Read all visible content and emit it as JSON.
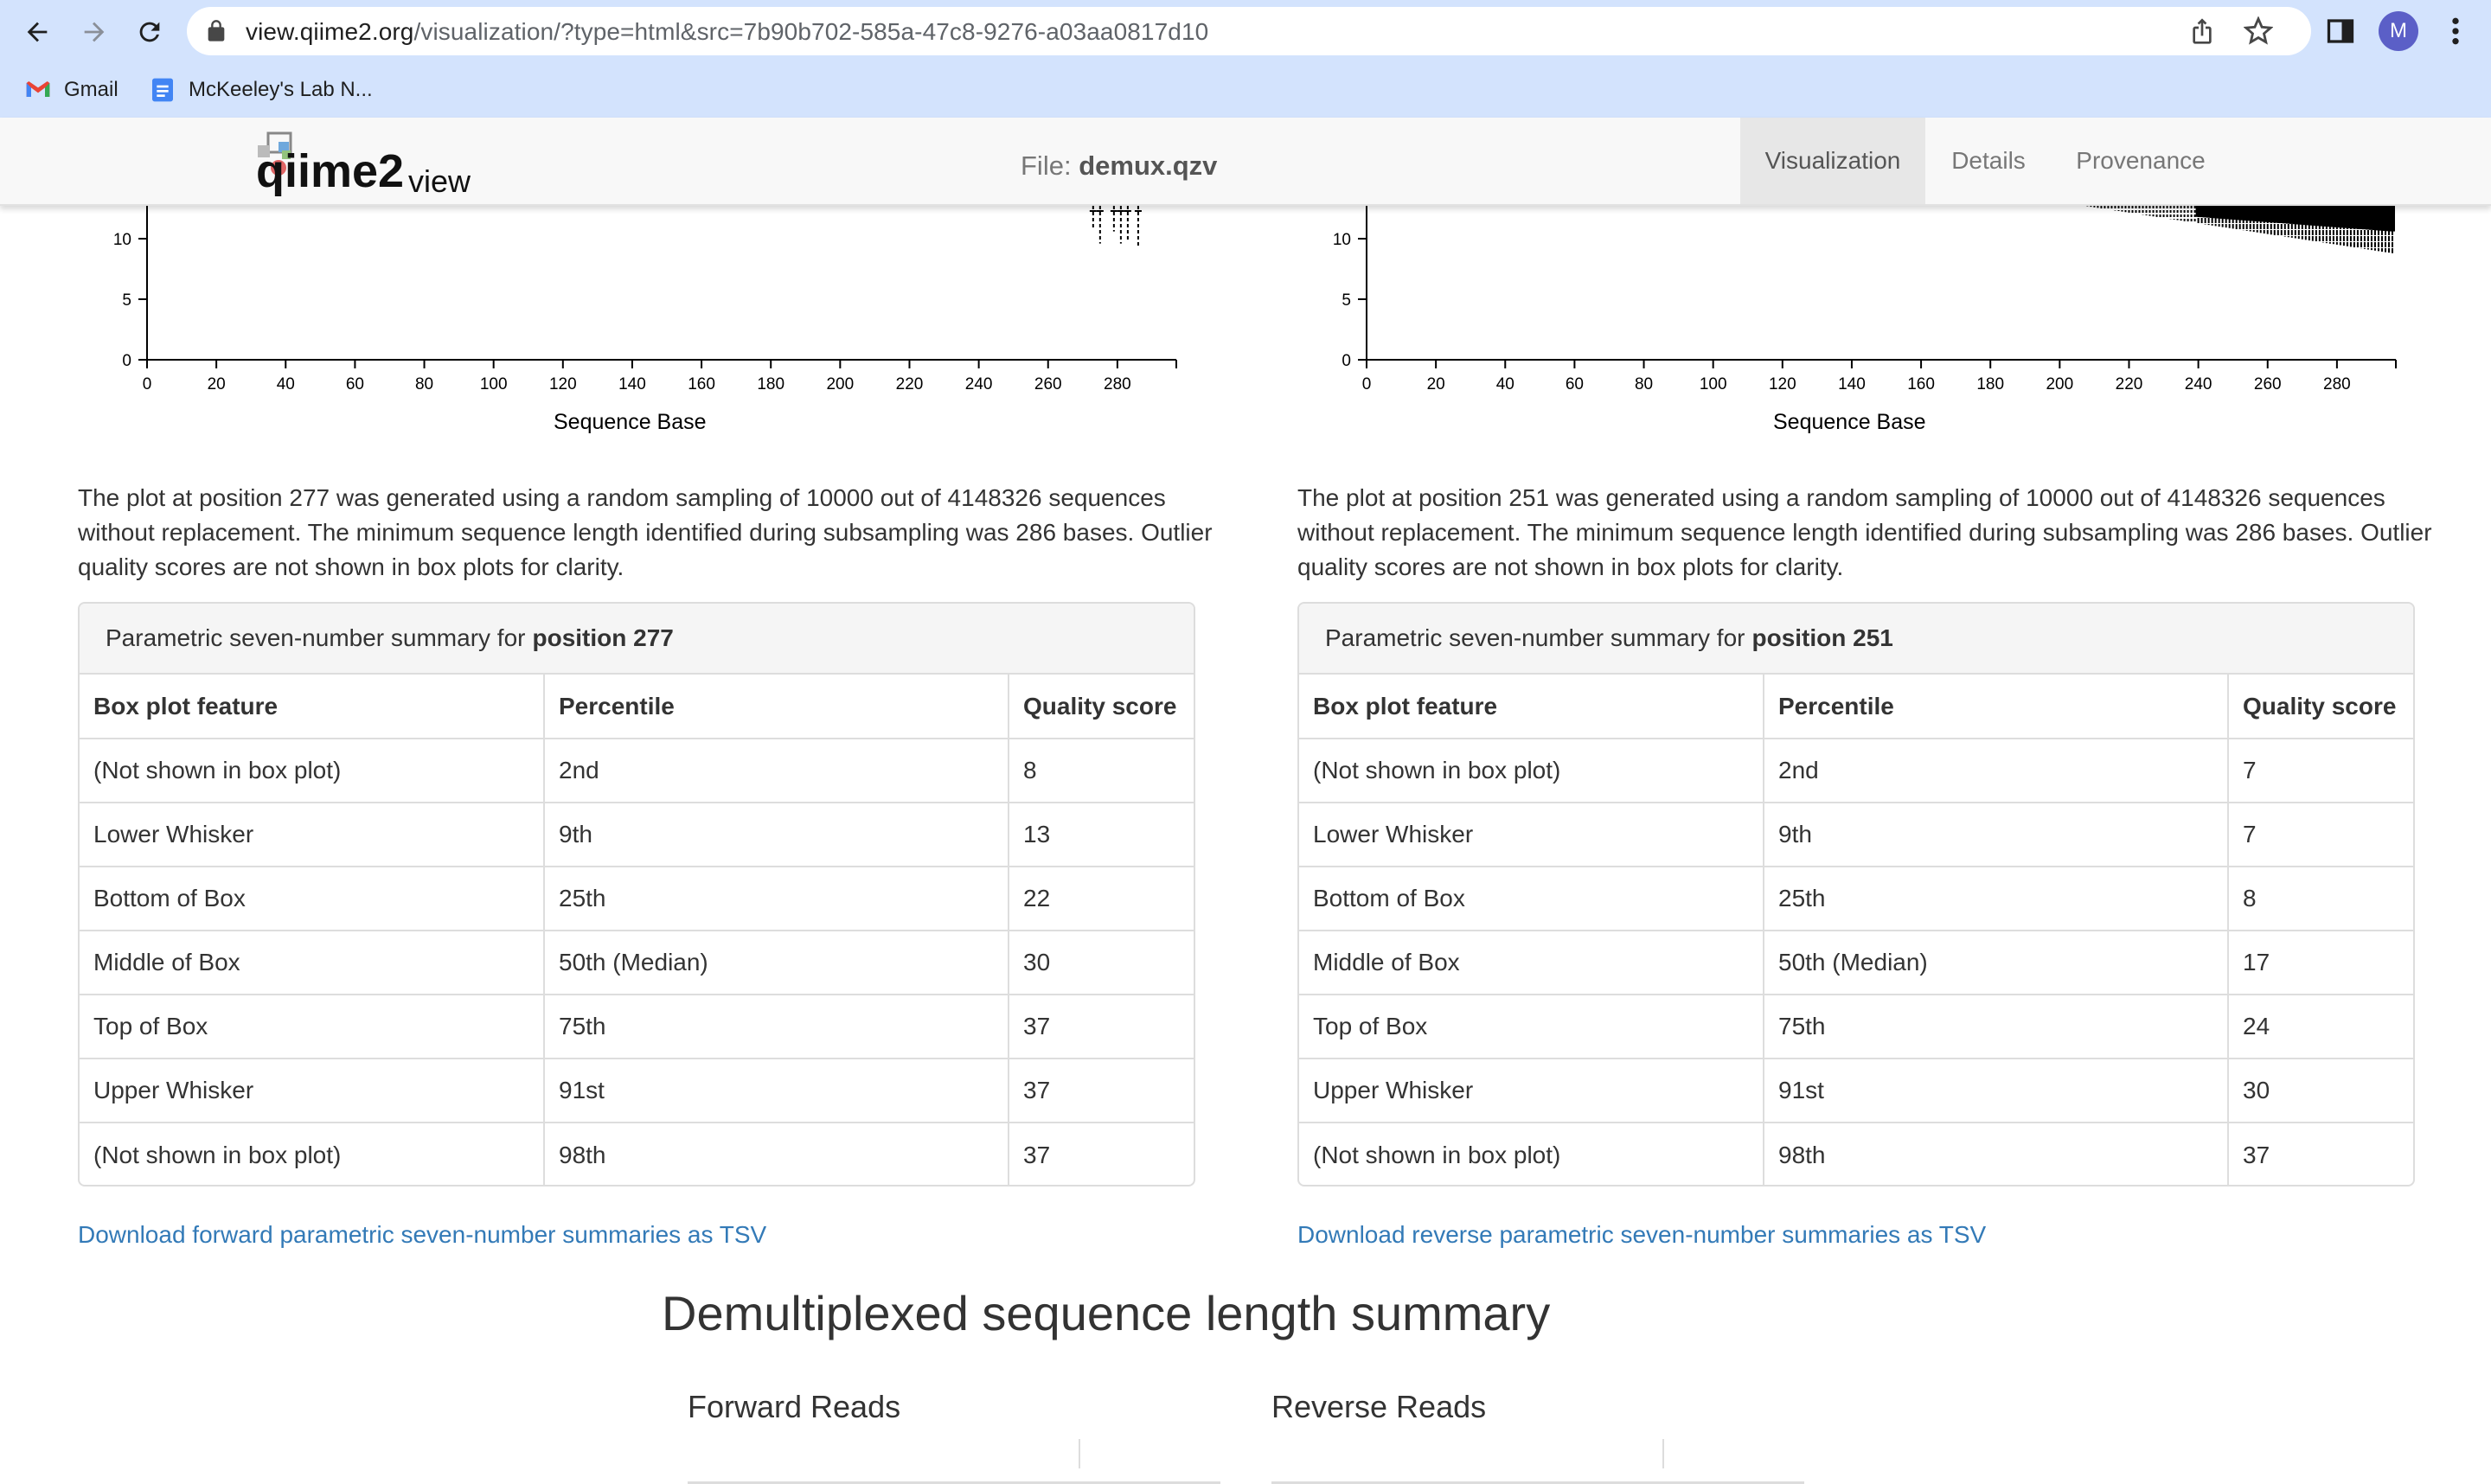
{
  "browser": {
    "url_host": "view.qiime2.org",
    "url_path": "/visualization/?type=html&src=7b90b702-585a-47c8-9276-a03aa0817d10",
    "bookmarks": [
      "Gmail",
      "McKeeley's Lab N..."
    ],
    "avatar_letter": "M"
  },
  "header": {
    "file_label": "File:",
    "file_name": "demux.qzv",
    "tabs": [
      "Visualization",
      "Details",
      "Provenance"
    ],
    "active_tab": "Visualization",
    "logo_text_main": "qiime2",
    "logo_text_sub": "view"
  },
  "forward": {
    "paragraph": "The plot at position 277 was generated using a random sampling of 10000 out of 4148326 sequences without replacement. The minimum sequence length identified during subsampling was 286 bases. Outlier quality scores are not shown in box plots for clarity.",
    "summary_prefix": "Parametric seven-number summary for",
    "summary_position": "position 277",
    "download_link": "Download forward parametric seven-number summaries as TSV"
  },
  "reverse": {
    "paragraph": "The plot at position 251 was generated using a random sampling of 10000 out of 4148326 sequences without replacement. The minimum sequence length identified during subsampling was 286 bases. Outlier quality scores are not shown in box plots for clarity.",
    "summary_prefix": "Parametric seven-number summary for",
    "summary_position": "position 251",
    "download_link": "Download reverse parametric seven-number summaries as TSV"
  },
  "table_headers": [
    "Box plot feature",
    "Percentile",
    "Quality score"
  ],
  "forward_rows": [
    [
      "(Not shown in box plot)",
      "2nd",
      "8"
    ],
    [
      "Lower Whisker",
      "9th",
      "13"
    ],
    [
      "Bottom of Box",
      "25th",
      "22"
    ],
    [
      "Middle of Box",
      "50th (Median)",
      "30"
    ],
    [
      "Top of Box",
      "75th",
      "37"
    ],
    [
      "Upper Whisker",
      "91st",
      "37"
    ],
    [
      "(Not shown in box plot)",
      "98th",
      "37"
    ]
  ],
  "reverse_rows": [
    [
      "(Not shown in box plot)",
      "2nd",
      "7"
    ],
    [
      "Lower Whisker",
      "9th",
      "7"
    ],
    [
      "Bottom of Box",
      "25th",
      "8"
    ],
    [
      "Middle of Box",
      "50th (Median)",
      "17"
    ],
    [
      "Top of Box",
      "75th",
      "24"
    ],
    [
      "Upper Whisker",
      "91st",
      "30"
    ],
    [
      "(Not shown in box plot)",
      "98th",
      "37"
    ]
  ],
  "length_summary": {
    "title": "Demultiplexed sequence length summary",
    "forward_title": "Forward Reads",
    "reverse_title": "Reverse Reads"
  },
  "chart_data": [
    {
      "type": "box",
      "xlabel": "Sequence Base",
      "x_ticks": [
        0,
        20,
        40,
        60,
        80,
        100,
        120,
        140,
        160,
        180,
        200,
        220,
        240,
        260,
        280
      ],
      "y_ticks_visible": [
        0,
        5,
        10
      ],
      "xlim": [
        0,
        297
      ]
    },
    {
      "type": "box",
      "xlabel": "Sequence Base",
      "x_ticks": [
        0,
        20,
        40,
        60,
        80,
        100,
        120,
        140,
        160,
        180,
        200,
        220,
        240,
        260,
        280
      ],
      "y_ticks_visible": [
        0,
        5,
        10
      ],
      "xlim": [
        0,
        297
      ]
    }
  ],
  "colors": {
    "link": "#337ab7",
    "chrome": "#d3e3fd",
    "active_tab": "#e7e7e7"
  }
}
